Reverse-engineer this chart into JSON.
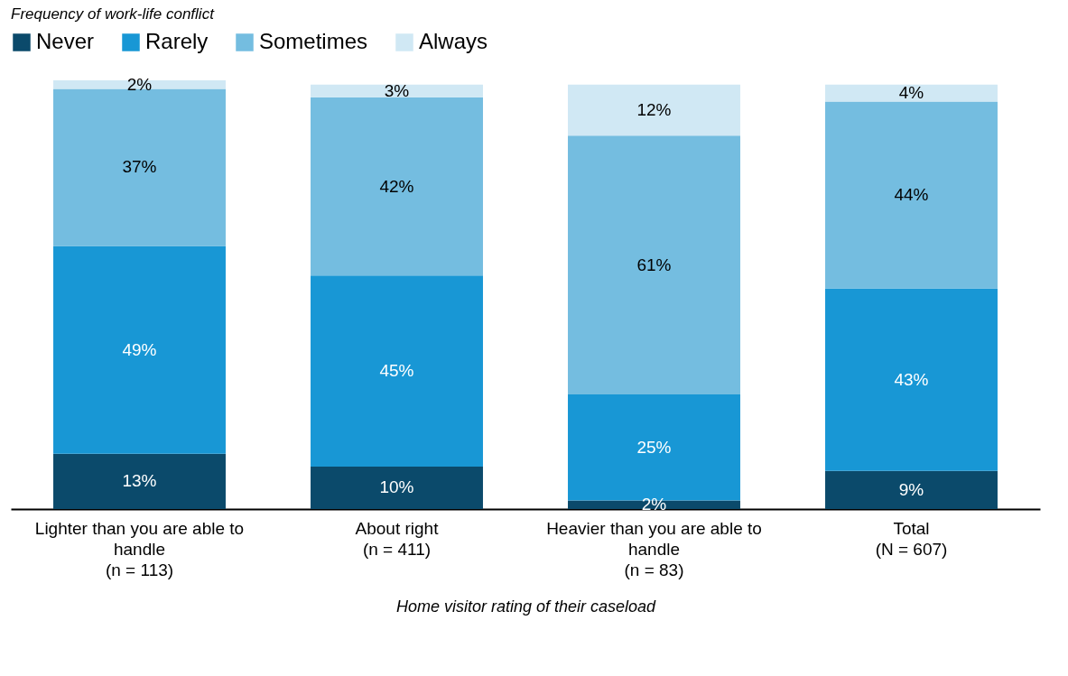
{
  "chart_data": {
    "type": "bar",
    "stacked": true,
    "legend_title": "Frequency of work-life conflict",
    "xlabel": "Home visitor rating of their caseload",
    "legend": "top left",
    "grid": false,
    "categories": [
      "Lighter than you are able to\nhandle\n(n = 113)",
      "About right\n(n = 411)",
      "Heavier than you are able to\nhandle\n(n = 83)",
      "Total\n(N = 607)"
    ],
    "series": [
      {
        "name": "Never",
        "color": "#0b4a6b",
        "values": [
          13,
          10,
          2,
          9
        ],
        "value_labels": [
          "13%",
          "10%",
          "2%",
          "9%"
        ]
      },
      {
        "name": "Rarely",
        "color": "#1897d5",
        "values": [
          49,
          45,
          25,
          43
        ],
        "value_labels": [
          "49%",
          "45%",
          "25%",
          "43%"
        ]
      },
      {
        "name": "Sometimes",
        "color": "#74bde0",
        "values": [
          37,
          42,
          61,
          44
        ],
        "value_labels": [
          "37%",
          "42%",
          "61%",
          "44%"
        ]
      },
      {
        "name": "Always",
        "color": "#d0e8f4",
        "values": [
          2,
          3,
          12,
          4
        ],
        "value_labels": [
          "2%",
          "3%",
          "12%",
          "4%"
        ]
      }
    ]
  }
}
